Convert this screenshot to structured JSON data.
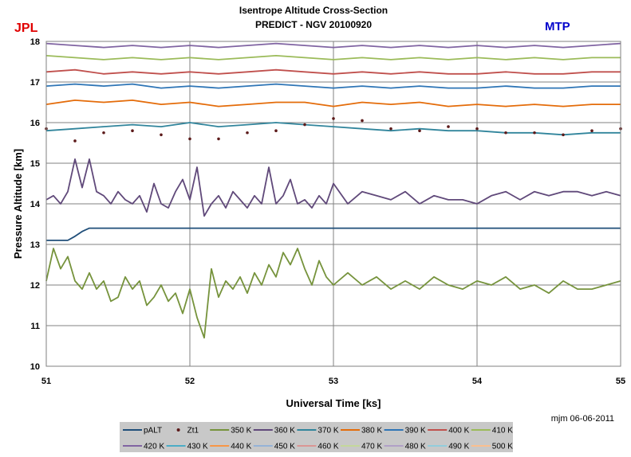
{
  "chart_data": {
    "type": "line",
    "title": "Isentrope Altitude Cross-Section",
    "subtitle": "PREDICT - NGV   20100920",
    "corner_left": "JPL",
    "corner_right": "MTP",
    "xlabel": "Universal Time [ks]",
    "ylabel": "Pressure Altitude  [km]",
    "credit": "mjm 06-06-2011",
    "xlim": [
      51,
      55
    ],
    "ylim": [
      10,
      18
    ],
    "xticks": [
      "51",
      "52",
      "53",
      "54",
      "55"
    ],
    "yticks": [
      "10",
      "11",
      "12",
      "13",
      "14",
      "15",
      "16",
      "17",
      "18"
    ],
    "grid": true,
    "legend_position": "bottom",
    "series": [
      {
        "name": "pALT",
        "color": "#1f4e79",
        "style": "line",
        "x": [
          51.0,
          51.15,
          51.2,
          51.25,
          51.3,
          51.4,
          55.0
        ],
        "values": [
          13.1,
          13.1,
          13.2,
          13.32,
          13.4,
          13.4,
          13.4
        ]
      },
      {
        "name": "Zt1",
        "color": "#5c1a1a",
        "style": "markers",
        "x": [
          51.0,
          51.2,
          51.4,
          51.6,
          51.8,
          52.0,
          52.2,
          52.4,
          52.6,
          52.8,
          53.0,
          53.2,
          53.4,
          53.6,
          53.8,
          54.0,
          54.2,
          54.4,
          54.6,
          54.8,
          55.0
        ],
        "values": [
          15.85,
          15.55,
          15.75,
          15.8,
          15.7,
          15.6,
          15.6,
          15.75,
          15.8,
          15.95,
          16.1,
          16.05,
          15.85,
          15.8,
          15.9,
          15.85,
          15.75,
          15.75,
          15.7,
          15.8,
          15.85
        ]
      },
      {
        "name": "350 K",
        "color": "#76933c",
        "style": "line",
        "x": [
          51.0,
          51.05,
          51.1,
          51.15,
          51.2,
          51.25,
          51.3,
          51.35,
          51.4,
          51.45,
          51.5,
          51.55,
          51.6,
          51.65,
          51.7,
          51.75,
          51.8,
          51.85,
          51.9,
          51.95,
          52.0,
          52.05,
          52.1,
          52.15,
          52.2,
          52.25,
          52.3,
          52.35,
          52.4,
          52.45,
          52.5,
          52.55,
          52.6,
          52.65,
          52.7,
          52.75,
          52.8,
          52.85,
          52.9,
          52.95,
          53.0,
          53.1,
          53.2,
          53.3,
          53.4,
          53.5,
          53.6,
          53.7,
          53.8,
          53.9,
          54.0,
          54.1,
          54.2,
          54.3,
          54.4,
          54.5,
          54.6,
          54.7,
          54.8,
          54.9,
          55.0
        ],
        "values": [
          12.1,
          12.9,
          12.4,
          12.7,
          12.1,
          11.9,
          12.3,
          11.9,
          12.1,
          11.6,
          11.7,
          12.2,
          11.9,
          12.1,
          11.5,
          11.7,
          12.0,
          11.6,
          11.8,
          11.3,
          11.9,
          11.2,
          10.7,
          12.4,
          11.7,
          12.1,
          11.9,
          12.2,
          11.8,
          12.3,
          12.0,
          12.5,
          12.2,
          12.8,
          12.5,
          12.9,
          12.4,
          12.0,
          12.6,
          12.2,
          12.0,
          12.3,
          12.0,
          12.2,
          11.9,
          12.1,
          11.9,
          12.2,
          12.0,
          11.9,
          12.1,
          12.0,
          12.2,
          11.9,
          12.0,
          11.8,
          12.1,
          11.9,
          11.9,
          12.0,
          12.1
        ]
      },
      {
        "name": "360 K",
        "color": "#60497a",
        "style": "line",
        "x": [
          51.0,
          51.05,
          51.1,
          51.15,
          51.2,
          51.25,
          51.3,
          51.35,
          51.4,
          51.45,
          51.5,
          51.55,
          51.6,
          51.65,
          51.7,
          51.75,
          51.8,
          51.85,
          51.9,
          51.95,
          52.0,
          52.05,
          52.1,
          52.15,
          52.2,
          52.25,
          52.3,
          52.35,
          52.4,
          52.45,
          52.5,
          52.55,
          52.6,
          52.65,
          52.7,
          52.75,
          52.8,
          52.85,
          52.9,
          52.95,
          53.0,
          53.1,
          53.2,
          53.3,
          53.4,
          53.5,
          53.6,
          53.7,
          53.8,
          53.9,
          54.0,
          54.1,
          54.2,
          54.3,
          54.4,
          54.5,
          54.6,
          54.7,
          54.8,
          54.9,
          55.0
        ],
        "values": [
          14.1,
          14.2,
          14.0,
          14.3,
          15.1,
          14.4,
          15.1,
          14.3,
          14.2,
          14.0,
          14.3,
          14.1,
          14.0,
          14.2,
          13.8,
          14.5,
          14.0,
          13.9,
          14.3,
          14.6,
          14.1,
          14.9,
          13.7,
          14.0,
          14.2,
          13.9,
          14.3,
          14.1,
          13.9,
          14.2,
          14.0,
          14.9,
          14.0,
          14.2,
          14.6,
          14.0,
          14.1,
          13.9,
          14.2,
          14.0,
          14.5,
          14.0,
          14.3,
          14.2,
          14.1,
          14.3,
          14.0,
          14.2,
          14.1,
          14.1,
          14.0,
          14.2,
          14.3,
          14.1,
          14.3,
          14.2,
          14.3,
          14.3,
          14.2,
          14.3,
          14.2
        ]
      },
      {
        "name": "370 K",
        "color": "#31859c",
        "style": "line",
        "x": [
          51.0,
          51.2,
          51.4,
          51.6,
          51.8,
          52.0,
          52.2,
          52.4,
          52.6,
          52.8,
          53.0,
          53.2,
          53.4,
          53.6,
          53.8,
          54.0,
          54.2,
          54.4,
          54.6,
          54.8,
          55.0
        ],
        "values": [
          15.8,
          15.85,
          15.9,
          15.95,
          15.9,
          16.0,
          15.9,
          15.95,
          16.0,
          15.95,
          15.9,
          15.85,
          15.8,
          15.85,
          15.8,
          15.8,
          15.75,
          15.75,
          15.7,
          15.75,
          15.75
        ]
      },
      {
        "name": "380 K",
        "color": "#e46c0a",
        "style": "line",
        "x": [
          51.0,
          51.2,
          51.4,
          51.6,
          51.8,
          52.0,
          52.2,
          52.4,
          52.6,
          52.8,
          53.0,
          53.2,
          53.4,
          53.6,
          53.8,
          54.0,
          54.2,
          54.4,
          54.6,
          54.8,
          55.0
        ],
        "values": [
          16.45,
          16.55,
          16.5,
          16.55,
          16.45,
          16.5,
          16.4,
          16.45,
          16.5,
          16.5,
          16.4,
          16.5,
          16.45,
          16.5,
          16.4,
          16.45,
          16.4,
          16.45,
          16.4,
          16.45,
          16.45
        ]
      },
      {
        "name": "390 K",
        "color": "#2e75b6",
        "style": "line",
        "x": [
          51.0,
          51.2,
          51.4,
          51.6,
          51.8,
          52.0,
          52.2,
          52.4,
          52.6,
          52.8,
          53.0,
          53.2,
          53.4,
          53.6,
          53.8,
          54.0,
          54.2,
          54.4,
          54.6,
          54.8,
          55.0
        ],
        "values": [
          16.9,
          16.95,
          16.9,
          16.95,
          16.85,
          16.9,
          16.85,
          16.9,
          16.95,
          16.9,
          16.85,
          16.9,
          16.85,
          16.9,
          16.85,
          16.85,
          16.9,
          16.85,
          16.85,
          16.9,
          16.9
        ]
      },
      {
        "name": "400 K",
        "color": "#c0504d",
        "style": "line",
        "x": [
          51.0,
          51.2,
          51.4,
          51.6,
          51.8,
          52.0,
          52.2,
          52.4,
          52.6,
          52.8,
          53.0,
          53.2,
          53.4,
          53.6,
          53.8,
          54.0,
          54.2,
          54.4,
          54.6,
          54.8,
          55.0
        ],
        "values": [
          17.25,
          17.3,
          17.2,
          17.25,
          17.2,
          17.25,
          17.2,
          17.25,
          17.3,
          17.25,
          17.2,
          17.25,
          17.2,
          17.25,
          17.2,
          17.2,
          17.25,
          17.2,
          17.2,
          17.25,
          17.25
        ]
      },
      {
        "name": "410 K",
        "color": "#9bbb59",
        "style": "line",
        "x": [
          51.0,
          51.2,
          51.4,
          51.6,
          51.8,
          52.0,
          52.2,
          52.4,
          52.6,
          52.8,
          53.0,
          53.2,
          53.4,
          53.6,
          53.8,
          54.0,
          54.2,
          54.4,
          54.6,
          54.8,
          55.0
        ],
        "values": [
          17.65,
          17.6,
          17.55,
          17.6,
          17.55,
          17.6,
          17.55,
          17.6,
          17.65,
          17.6,
          17.55,
          17.6,
          17.55,
          17.6,
          17.55,
          17.6,
          17.55,
          17.6,
          17.55,
          17.6,
          17.6
        ]
      },
      {
        "name": "420 K",
        "color": "#8064a2",
        "style": "line",
        "x": [
          51.0,
          51.2,
          51.4,
          51.6,
          51.8,
          52.0,
          52.2,
          52.4,
          52.6,
          52.8,
          53.0,
          53.2,
          53.4,
          53.6,
          53.8,
          54.0,
          54.2,
          54.4,
          54.6,
          54.8,
          55.0
        ],
        "values": [
          17.95,
          17.9,
          17.85,
          17.9,
          17.85,
          17.9,
          17.85,
          17.9,
          17.95,
          17.9,
          17.85,
          17.9,
          17.85,
          17.9,
          17.85,
          17.9,
          17.85,
          17.9,
          17.85,
          17.9,
          17.95
        ]
      },
      {
        "name": "430 K",
        "color": "#4bacc6",
        "style": "line",
        "x": [],
        "values": []
      },
      {
        "name": "440 K",
        "color": "#f79646",
        "style": "line",
        "x": [],
        "values": []
      },
      {
        "name": "450 K",
        "color": "#95b3d7",
        "style": "line",
        "x": [],
        "values": []
      },
      {
        "name": "460 K",
        "color": "#da9694",
        "style": "line",
        "x": [],
        "values": []
      },
      {
        "name": "470 K",
        "color": "#c4d79b",
        "style": "line",
        "x": [],
        "values": []
      },
      {
        "name": "480 K",
        "color": "#b1a0c7",
        "style": "line",
        "x": [],
        "values": []
      },
      {
        "name": "490 K",
        "color": "#92cddc",
        "style": "line",
        "x": [],
        "values": []
      },
      {
        "name": "500 K",
        "color": "#fabf8f",
        "style": "line",
        "x": [],
        "values": []
      }
    ]
  }
}
